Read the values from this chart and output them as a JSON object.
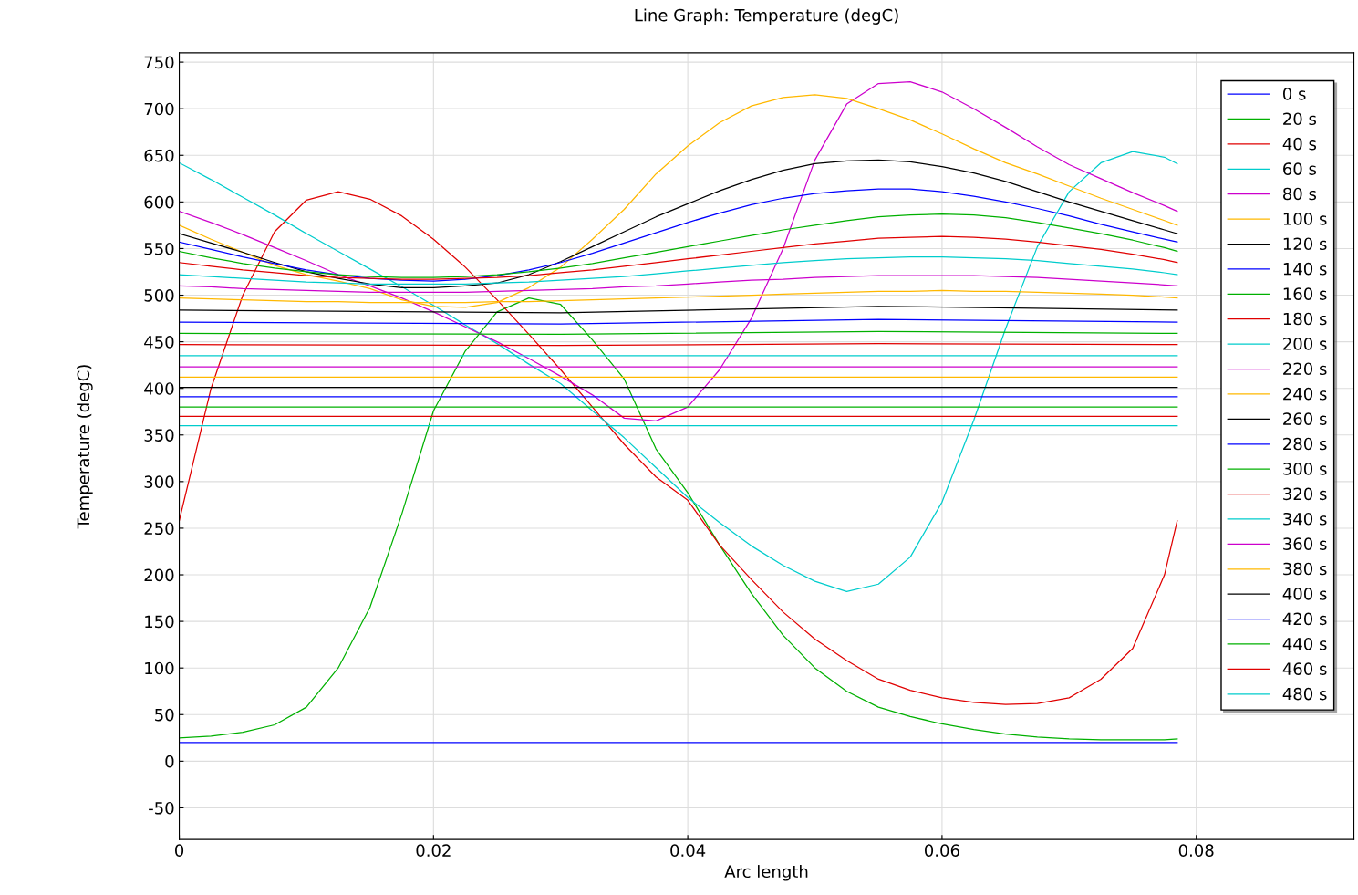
{
  "chart_data": {
    "type": "line",
    "title": "Line Graph: Temperature (degC)",
    "xlabel": "Arc length",
    "ylabel": "Temperature (degC)",
    "x": [
      0,
      0.0025,
      0.005,
      0.0075,
      0.01,
      0.0125,
      0.015,
      0.0175,
      0.02,
      0.0225,
      0.025,
      0.0275,
      0.03,
      0.0325,
      0.035,
      0.0375,
      0.04,
      0.0425,
      0.045,
      0.0475,
      0.05,
      0.0525,
      0.055,
      0.0575,
      0.06,
      0.0625,
      0.065,
      0.0675,
      0.07,
      0.0725,
      0.075,
      0.0775,
      0.0785
    ],
    "xlim": [
      0,
      0.0924
    ],
    "ylim": [
      -84,
      760
    ],
    "xticks": [
      0,
      0.02,
      0.04,
      0.06,
      0.08
    ],
    "yticks": [
      -50,
      0,
      50,
      100,
      150,
      200,
      250,
      300,
      350,
      400,
      450,
      500,
      550,
      600,
      650,
      700,
      750
    ],
    "grid": true,
    "legend": "top right",
    "marker": "none",
    "line_style": "solid",
    "series": [
      {
        "name": "0 s",
        "color": "#0000ff",
        "x": [
          0,
          0.0785
        ],
        "values": [
          20,
          20
        ]
      },
      {
        "name": "20 s",
        "color": "#00b000",
        "values": [
          25,
          27,
          31,
          39,
          58,
          100,
          165,
          265,
          376,
          440,
          482,
          497,
          490,
          452,
          410,
          335,
          288,
          232,
          180,
          135,
          100,
          75,
          58,
          48,
          40,
          34,
          29,
          26,
          24,
          23,
          23,
          23,
          24
        ]
      },
      {
        "name": "40 s",
        "color": "#e00000",
        "values": [
          258,
          400,
          500,
          568,
          602,
          611,
          603,
          585,
          560,
          530,
          495,
          458,
          420,
          380,
          340,
          305,
          280,
          232,
          195,
          160,
          131,
          108,
          88,
          76,
          68,
          63,
          61,
          62,
          68,
          88,
          121,
          200,
          258
        ]
      },
      {
        "name": "60 s",
        "color": "#00cccc",
        "values": [
          642,
          624,
          605,
          586,
          566,
          547,
          528,
          509,
          489,
          468,
          448,
          426,
          405,
          376,
          347,
          315,
          283,
          256,
          231,
          210,
          193,
          182,
          190,
          219,
          278,
          366,
          464,
          552,
          611,
          642,
          654,
          648,
          641
        ]
      },
      {
        "name": "80 s",
        "color": "#cc00cc",
        "values": [
          590,
          578,
          565,
          551,
          537,
          522,
          510,
          497,
          482,
          466,
          450,
          432,
          413,
          393,
          368,
          365,
          380,
          420,
          475,
          550,
          645,
          705,
          727,
          729,
          718,
          700,
          680,
          659,
          640,
          625,
          610,
          596,
          590
        ]
      },
      {
        "name": "100 s",
        "color": "#ffb800",
        "values": [
          575,
          560,
          546,
          532,
          522,
          515,
          507,
          495,
          488,
          487,
          492,
          508,
          530,
          560,
          592,
          630,
          660,
          685,
          703,
          712,
          715,
          711,
          700,
          688,
          673,
          657,
          642,
          630,
          617,
          604,
          592,
          580,
          575
        ]
      },
      {
        "name": "120 s",
        "color": "#000000",
        "values": [
          566,
          556,
          546,
          535,
          525,
          518,
          512,
          508,
          508,
          510,
          513,
          522,
          536,
          552,
          568,
          584,
          598,
          612,
          624,
          634,
          641,
          644,
          645,
          643,
          638,
          631,
          622,
          611,
          600,
          590,
          580,
          570,
          566
        ]
      },
      {
        "name": "140 s",
        "color": "#0000ff",
        "values": [
          557,
          549,
          541,
          534,
          527,
          522,
          518,
          516,
          515,
          517,
          521,
          527,
          535,
          545,
          556,
          567,
          578,
          588,
          597,
          604,
          609,
          612,
          614,
          614,
          611,
          606,
          600,
          593,
          585,
          576,
          568,
          560,
          557
        ]
      },
      {
        "name": "160 s",
        "color": "#00b000",
        "values": [
          547,
          540,
          534,
          529,
          525,
          522,
          520,
          519,
          519,
          520,
          522,
          525,
          529,
          534,
          540,
          546,
          552,
          558,
          564,
          570,
          575,
          580,
          584,
          586,
          587,
          586,
          583,
          578,
          572,
          566,
          559,
          551,
          547
        ]
      },
      {
        "name": "180 s",
        "color": "#e00000",
        "values": [
          535,
          531,
          527,
          524,
          521,
          519,
          518,
          517,
          517,
          518,
          519,
          521,
          524,
          527,
          531,
          535,
          539,
          543,
          547,
          551,
          555,
          558,
          561,
          562,
          563,
          562,
          560,
          557,
          553,
          549,
          544,
          538,
          535
        ]
      },
      {
        "name": "200 s",
        "color": "#00cccc",
        "values": [
          522,
          520,
          518,
          516,
          514,
          513,
          512,
          512,
          512,
          512,
          513,
          514,
          516,
          518,
          520,
          523,
          526,
          529,
          532,
          535,
          537,
          539,
          540,
          541,
          541,
          540,
          539,
          537,
          534,
          531,
          528,
          524,
          522
        ]
      },
      {
        "name": "220 s",
        "color": "#cc00cc",
        "values": [
          510,
          509,
          507,
          506,
          505,
          504,
          503,
          503,
          503,
          503,
          504,
          505,
          506,
          507,
          509,
          510,
          512,
          514,
          516,
          517,
          519,
          520,
          521,
          521,
          521,
          521,
          520,
          519,
          517,
          515,
          513,
          511,
          510
        ]
      },
      {
        "name": "240 s",
        "color": "#ffb800",
        "values": [
          497,
          496,
          495,
          494,
          493,
          493,
          492,
          492,
          492,
          492,
          493,
          493,
          494,
          495,
          496,
          497,
          498,
          499,
          500,
          501,
          502,
          503,
          504,
          504,
          505,
          504,
          504,
          503,
          502,
          501,
          500,
          498,
          497
        ]
      },
      {
        "name": "260 s",
        "color": "#000000",
        "x": [
          0,
          0.03,
          0.055,
          0.0785
        ],
        "values": [
          484,
          481,
          488,
          484
        ]
      },
      {
        "name": "280 s",
        "color": "#0000ff",
        "x": [
          0,
          0.03,
          0.055,
          0.0785
        ],
        "values": [
          471,
          469,
          474,
          471
        ]
      },
      {
        "name": "300 s",
        "color": "#00b000",
        "x": [
          0,
          0.03,
          0.055,
          0.0785
        ],
        "values": [
          459,
          458,
          461,
          459
        ]
      },
      {
        "name": "320 s",
        "color": "#e00000",
        "x": [
          0,
          0.03,
          0.055,
          0.0785
        ],
        "values": [
          447,
          446,
          448,
          447
        ]
      },
      {
        "name": "340 s",
        "color": "#00cccc",
        "x": [
          0,
          0.0785
        ],
        "values": [
          435,
          435
        ]
      },
      {
        "name": "360 s",
        "color": "#cc00cc",
        "x": [
          0,
          0.0785
        ],
        "values": [
          423,
          423
        ]
      },
      {
        "name": "380 s",
        "color": "#ffb800",
        "x": [
          0,
          0.0785
        ],
        "values": [
          412,
          412
        ]
      },
      {
        "name": "400 s",
        "color": "#000000",
        "x": [
          0,
          0.0785
        ],
        "values": [
          401,
          401
        ]
      },
      {
        "name": "420 s",
        "color": "#0000ff",
        "x": [
          0,
          0.0785
        ],
        "values": [
          391,
          391
        ]
      },
      {
        "name": "440 s",
        "color": "#00b000",
        "x": [
          0,
          0.0785
        ],
        "values": [
          380,
          380
        ]
      },
      {
        "name": "460 s",
        "color": "#e00000",
        "x": [
          0,
          0.0785
        ],
        "values": [
          370,
          370
        ]
      },
      {
        "name": "480 s",
        "color": "#00cccc",
        "x": [
          0,
          0.0785
        ],
        "values": [
          360,
          360
        ]
      }
    ]
  }
}
